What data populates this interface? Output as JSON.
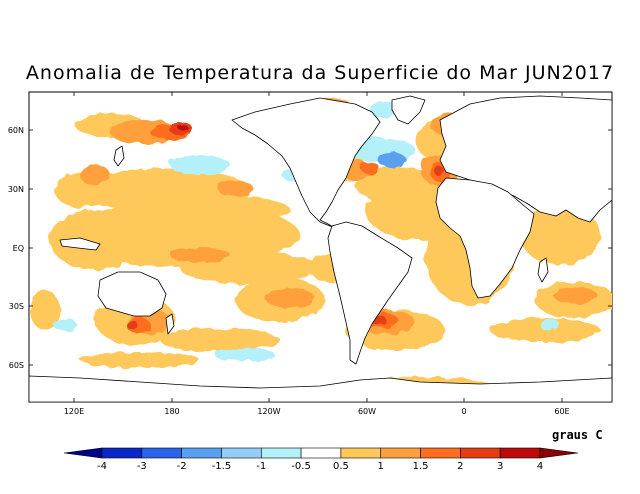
{
  "title": "Anomalia de Temperatura da Superficie do Mar JUN2017",
  "lat_labels": [
    "60N",
    "30N",
    "EQ",
    "30S",
    "60S"
  ],
  "lon_labels": [
    "120E",
    "180",
    "120W",
    "60W",
    "0",
    "60E"
  ],
  "colorbar": {
    "units": "graus C",
    "labels": [
      "-4",
      "-3",
      "-2",
      "-1.5",
      "-1",
      "-0.5",
      "0.5",
      "1",
      "1.5",
      "2",
      "3",
      "4"
    ],
    "colors": [
      "#00008c",
      "#0a28c8",
      "#2a64e8",
      "#5aa0f0",
      "#96cdf6",
      "#b4f0fa",
      "#ffffff",
      "#ffc85a",
      "#ffa03c",
      "#ff6e1e",
      "#e63c14",
      "#be0a0a",
      "#8c0000"
    ]
  },
  "colors": {
    "land": "#ffffff",
    "ocean_neutral": "#ffffff",
    "coast": "#000000",
    "ice_edge": "#000000"
  }
}
